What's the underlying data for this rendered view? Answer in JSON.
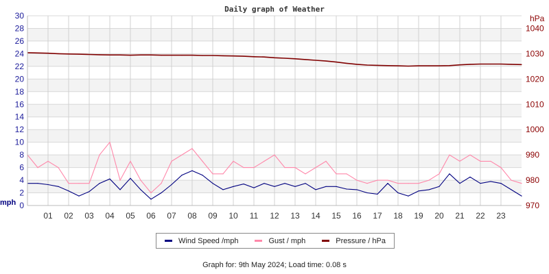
{
  "chart_data": {
    "type": "line",
    "title": "Daily graph of Weather",
    "x_tick_labels": [
      "01",
      "02",
      "03",
      "04",
      "05",
      "06",
      "07",
      "08",
      "09",
      "10",
      "11",
      "12",
      "13",
      "14",
      "15",
      "16",
      "17",
      "18",
      "19",
      "20",
      "21",
      "22",
      "23"
    ],
    "xlim": [
      0,
      24
    ],
    "left_axis": {
      "label": "mph",
      "ylim": [
        0,
        30
      ],
      "ticks": [
        0,
        2,
        4,
        6,
        8,
        10,
        12,
        14,
        16,
        18,
        20,
        22,
        24,
        26,
        28,
        30
      ],
      "color": "#1a1a9a"
    },
    "right_axis": {
      "label": "hPa",
      "ylim": [
        970,
        1045
      ],
      "ticks": [
        970,
        980,
        990,
        1000,
        1010,
        1020,
        1030,
        1040
      ],
      "color": "#8b0000"
    },
    "grid": true,
    "x": [
      0,
      0.5,
      1,
      1.5,
      2,
      2.5,
      3,
      3.5,
      4,
      4.5,
      5,
      5.5,
      6,
      6.5,
      7,
      7.5,
      8,
      8.5,
      9,
      9.5,
      10,
      10.5,
      11,
      11.5,
      12,
      12.5,
      13,
      13.5,
      14,
      14.5,
      15,
      15.5,
      16,
      16.5,
      17,
      17.5,
      18,
      18.5,
      19,
      19.5,
      20,
      20.5,
      21,
      21.5,
      22,
      22.5,
      23,
      23.5,
      24
    ],
    "series": [
      {
        "name": "Wind Speed /mph",
        "axis": "left",
        "color": "#000080",
        "values": [
          3.5,
          3.5,
          3.3,
          3.0,
          2.3,
          1.5,
          2.2,
          3.5,
          4.2,
          2.5,
          4.3,
          2.5,
          1.0,
          2.0,
          3.3,
          4.8,
          5.5,
          4.8,
          3.5,
          2.5,
          3.0,
          3.4,
          2.8,
          3.5,
          3.0,
          3.5,
          3.0,
          3.5,
          2.5,
          3.0,
          3.0,
          2.6,
          2.5,
          2.0,
          1.8,
          3.5,
          2.0,
          1.5,
          2.3,
          2.5,
          3.0,
          5.0,
          3.5,
          4.5,
          3.5,
          3.8,
          3.5,
          2.5,
          1.5
        ]
      },
      {
        "name": "Gust / mph",
        "axis": "left",
        "color": "#ff88aa",
        "values": [
          8,
          6,
          7,
          6,
          3.5,
          3.5,
          3.5,
          8,
          10,
          4,
          7,
          4,
          2,
          3.5,
          7,
          8,
          9,
          7,
          5,
          5,
          7,
          6,
          6,
          7,
          8,
          6,
          6,
          5,
          6,
          7,
          5,
          5,
          4,
          3.5,
          4,
          4,
          3.5,
          3.5,
          3.5,
          4,
          5,
          8,
          7,
          8,
          7,
          7,
          6,
          4,
          3.5
        ]
      },
      {
        "name": "Pressure / hPa",
        "axis": "right",
        "color": "#800000",
        "values": [
          1030.4,
          1030.3,
          1030.2,
          1030.0,
          1029.9,
          1029.8,
          1029.7,
          1029.6,
          1029.5,
          1029.5,
          1029.4,
          1029.5,
          1029.5,
          1029.4,
          1029.4,
          1029.4,
          1029.4,
          1029.3,
          1029.3,
          1029.2,
          1029.1,
          1029.0,
          1028.8,
          1028.7,
          1028.4,
          1028.2,
          1028.0,
          1027.7,
          1027.4,
          1027.1,
          1026.7,
          1026.2,
          1025.8,
          1025.5,
          1025.4,
          1025.3,
          1025.2,
          1025.1,
          1025.2,
          1025.2,
          1025.2,
          1025.3,
          1025.6,
          1025.8,
          1025.9,
          1025.9,
          1025.9,
          1025.8,
          1025.7
        ]
      }
    ],
    "legend_position": "bottom"
  },
  "footer": "Graph for: 9th May 2024; Load time: 0.08 s"
}
